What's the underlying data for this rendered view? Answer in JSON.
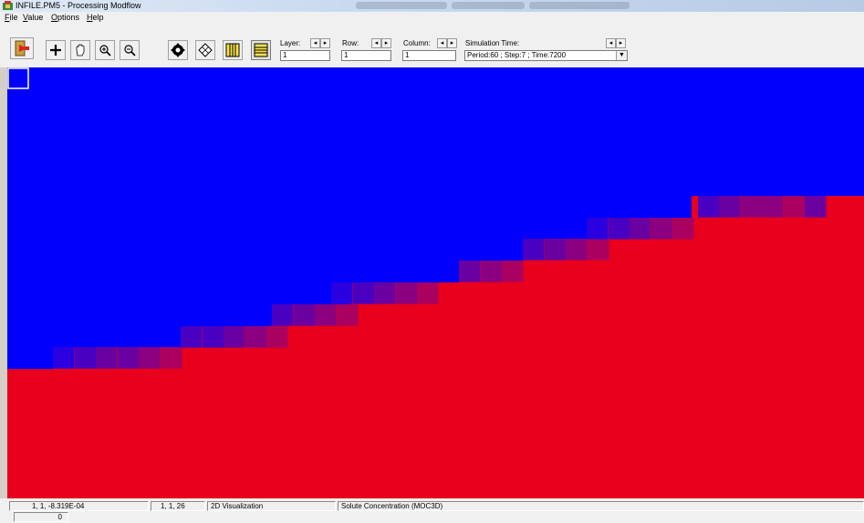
{
  "window": {
    "title": "INFILE.PM5 - Processing Modflow"
  },
  "menu": [
    {
      "u": "F",
      "rest": "ile"
    },
    {
      "u": "V",
      "rest": "alue"
    },
    {
      "u": "O",
      "rest": "ptions"
    },
    {
      "u": "H",
      "rest": "elp"
    }
  ],
  "toolbar": {
    "layer": {
      "label": "Layer:",
      "value": "1"
    },
    "row": {
      "label": "Row:",
      "value": "1"
    },
    "column": {
      "label": "Column:",
      "value": "1"
    },
    "simulation_time": {
      "label": "Simulation Time:",
      "value": "Period:60 ; Step:7 ; Time:7200"
    },
    "spin_left": "◂",
    "spin_right": "▸",
    "combo_arrow": "▼"
  },
  "icons": {
    "exit": "exit-door-icon",
    "add": "plus-icon",
    "pan": "hand-pan-icon",
    "zoom_in": "zoom-in-icon",
    "zoom_out": "zoom-out-icon",
    "map": "compass-move-icon",
    "diamond": "diamond-grid-icon",
    "cols": "column-grid-icon",
    "rows": "row-grid-icon"
  },
  "colors": {
    "blue": "#0000fc",
    "red": "#e8001c",
    "mix": [
      "#2a00e0",
      "#4a00c0",
      "#6a00a0",
      "#8a0080",
      "#aa0060"
    ]
  },
  "statusbar": {
    "coords": "1,    1, -8.319E-04",
    "cell": "1, 1, 26",
    "mode": "2D Visualization",
    "description": "Solute Concentration (MOC3D)",
    "second_row_value": "0"
  }
}
